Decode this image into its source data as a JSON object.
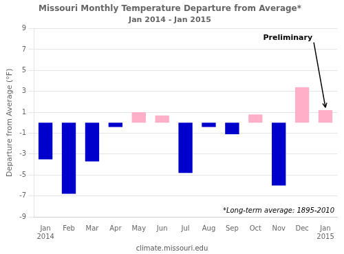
{
  "chart_data": {
    "type": "bar",
    "title": "Missouri Monthly Temperature Departure from Average*",
    "subtitle": "Jan 2014 - Jan 2015",
    "ylabel": "Departure from Average (°F)",
    "categories": [
      "Jan\n2014",
      "Feb",
      "Mar",
      "Apr",
      "May",
      "Jun",
      "Jul",
      "Aug",
      "Sep",
      "Oct",
      "Nov",
      "Dec",
      "Jan\n2015"
    ],
    "values": [
      -3.5,
      -6.8,
      -3.7,
      -0.4,
      1.0,
      0.7,
      -4.8,
      -0.4,
      -1.1,
      0.8,
      -6.0,
      3.4,
      1.2
    ],
    "colors": [
      "#0000CC",
      "#0000CC",
      "#0000CC",
      "#0000CC",
      "#FFB0C8",
      "#FFB0C8",
      "#0000CC",
      "#0000CC",
      "#0000CC",
      "#FFB0C8",
      "#0000CC",
      "#FFB0C8",
      "#FFB0C8"
    ],
    "ylim": [
      -9,
      9
    ],
    "yticks": [
      -9,
      -7,
      -5,
      -3,
      -1,
      1,
      3,
      5,
      7,
      9
    ],
    "grid": true,
    "annotations": [
      {
        "text": "Preliminary",
        "category": "Jan\n2015"
      },
      {
        "text": "*Long-term average: 1895-2010"
      },
      {
        "text": "climate.missouri.edu"
      }
    ]
  }
}
